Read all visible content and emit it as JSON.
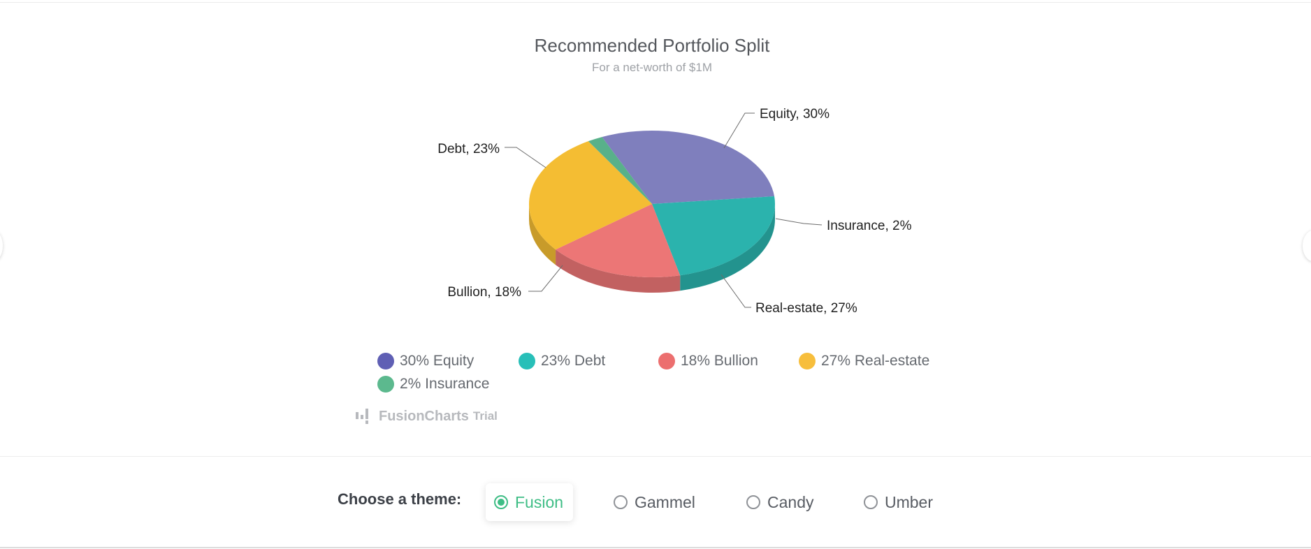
{
  "chart_data": {
    "type": "pie",
    "title": "Recommended Portfolio Split",
    "subtitle": "For a net-worth of $1M",
    "slices": [
      {
        "label": "Equity",
        "value": 30,
        "color": "#7f7fbd",
        "data_label": "Equity, 30%"
      },
      {
        "label": "Debt",
        "value": 23,
        "color": "#2bb3ad",
        "data_label": "Debt, 23%"
      },
      {
        "label": "Bullion",
        "value": 18,
        "color": "#ec7676",
        "data_label": "Bullion, 18%"
      },
      {
        "label": "Real-estate",
        "value": 27,
        "color": "#f4bd33",
        "data_label": "Real-estate, 27%"
      },
      {
        "label": "Insurance",
        "value": 2,
        "color": "#58b18a",
        "data_label": "Insurance, 2%"
      }
    ]
  },
  "legend": [
    {
      "text": "30% Equity",
      "color": "#5f5fb4"
    },
    {
      "text": "23% Debt",
      "color": "#28bfb8"
    },
    {
      "text": "18% Bullion",
      "color": "#ec6f6f"
    },
    {
      "text": "27% Real-estate",
      "color": "#f7be3c"
    },
    {
      "text": "2% Insurance",
      "color": "#5cb98e"
    }
  ],
  "credit": {
    "brand": "FusionCharts",
    "suffix": "Trial"
  },
  "theme_picker": {
    "label": "Choose a theme:",
    "options": [
      {
        "label": "Fusion",
        "selected": true
      },
      {
        "label": "Gammel",
        "selected": false
      },
      {
        "label": "Candy",
        "selected": false
      },
      {
        "label": "Umber",
        "selected": false
      }
    ]
  },
  "colors": {
    "accent": "#3ebd85"
  }
}
